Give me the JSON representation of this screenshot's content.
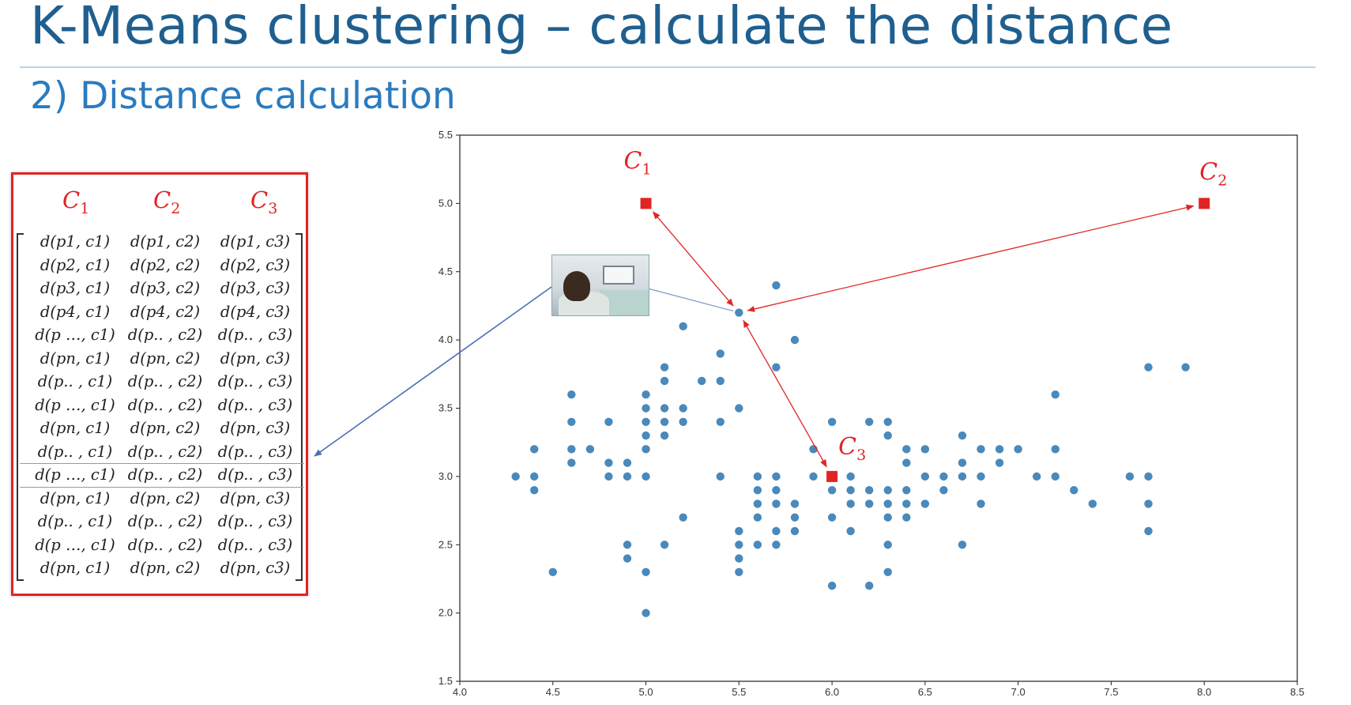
{
  "slide": {
    "title": "K-Means clustering – calculate the distance",
    "subtitle": "2) Distance calculation"
  },
  "matrix": {
    "headers": [
      {
        "letter": "C",
        "sub": "1"
      },
      {
        "letter": "C",
        "sub": "2"
      },
      {
        "letter": "C",
        "sub": "3"
      }
    ],
    "rows": [
      [
        "d(p1, c1)",
        "d(p1, c2)",
        "d(p1, c3)"
      ],
      [
        "d(p2, c1)",
        "d(p2, c2)",
        "d(p2, c3)"
      ],
      [
        "d(p3, c1)",
        "d(p3, c2)",
        "d(p3, c3)"
      ],
      [
        "d(p4, c1)",
        "d(p4, c2)",
        "d(p4, c3)"
      ],
      [
        "d(p …, c1)",
        "d(p.. , c2)",
        "d(p.. , c3)"
      ],
      [
        "d(pn, c1)",
        "d(pn, c2)",
        "d(pn, c3)"
      ],
      [
        "d(p.. , c1)",
        "d(p.. , c2)",
        "d(p.. , c3)"
      ],
      [
        "d(p …, c1)",
        "d(p.. , c2)",
        "d(p.. , c3)"
      ],
      [
        "d(pn, c1)",
        "d(pn, c2)",
        "d(pn, c3)"
      ],
      [
        "d(p.. , c1)",
        "d(p.. , c2)",
        "d(p.. , c3)"
      ],
      [
        "d(p …, c1)",
        "d(p.. , c2)",
        "d(p.. , c3)"
      ],
      [
        "d(pn, c1)",
        "d(pn, c2)",
        "d(pn, c3)"
      ],
      [
        "d(p.. , c1)",
        "d(p.. , c2)",
        "d(p.. , c3)"
      ],
      [
        "d(p …, c1)",
        "d(p.. , c2)",
        "d(p.. , c3)"
      ],
      [
        "d(pn, c1)",
        "d(pn, c2)",
        "d(pn, c3)"
      ]
    ],
    "highlighted_row": 10
  },
  "thumbnail": {
    "icon": "video-thumbnail-icon"
  },
  "chart_data": {
    "type": "scatter",
    "xlim": [
      4.0,
      8.5
    ],
    "ylim": [
      1.5,
      5.5
    ],
    "xticks": [
      "4.0",
      "4.5",
      "5.0",
      "5.5",
      "6.0",
      "6.5",
      "7.0",
      "7.5",
      "8.0",
      "8.5"
    ],
    "yticks": [
      "1.5",
      "2.0",
      "2.5",
      "3.0",
      "3.5",
      "4.0",
      "4.5",
      "5.0",
      "5.5"
    ],
    "grid": false,
    "point_color": "#3a7fb5",
    "centroid_color": "#e02424",
    "arrow_color": "#e02424",
    "points": [
      [
        4.3,
        3.0
      ],
      [
        4.4,
        3.2
      ],
      [
        4.4,
        3.0
      ],
      [
        4.4,
        2.9
      ],
      [
        4.5,
        2.3
      ],
      [
        4.6,
        3.6
      ],
      [
        4.6,
        3.4
      ],
      [
        4.6,
        3.2
      ],
      [
        4.6,
        3.1
      ],
      [
        4.7,
        3.2
      ],
      [
        4.8,
        3.4
      ],
      [
        4.8,
        3.1
      ],
      [
        4.8,
        3.0
      ],
      [
        4.9,
        3.1
      ],
      [
        4.9,
        3.0
      ],
      [
        4.9,
        2.5
      ],
      [
        4.9,
        2.4
      ],
      [
        5.0,
        3.6
      ],
      [
        5.0,
        3.5
      ],
      [
        5.0,
        3.4
      ],
      [
        5.0,
        3.3
      ],
      [
        5.0,
        3.2
      ],
      [
        5.0,
        3.0
      ],
      [
        5.0,
        2.3
      ],
      [
        5.0,
        2.0
      ],
      [
        5.1,
        3.8
      ],
      [
        5.1,
        3.7
      ],
      [
        5.1,
        3.5
      ],
      [
        5.1,
        3.4
      ],
      [
        5.1,
        3.3
      ],
      [
        5.1,
        2.5
      ],
      [
        5.2,
        4.1
      ],
      [
        5.2,
        3.5
      ],
      [
        5.2,
        3.4
      ],
      [
        5.2,
        2.7
      ],
      [
        5.3,
        3.7
      ],
      [
        5.4,
        3.9
      ],
      [
        5.4,
        3.7
      ],
      [
        5.4,
        3.4
      ],
      [
        5.4,
        3.0
      ],
      [
        5.5,
        4.2
      ],
      [
        5.5,
        3.5
      ],
      [
        5.5,
        2.6
      ],
      [
        5.5,
        2.5
      ],
      [
        5.5,
        2.4
      ],
      [
        5.5,
        2.3
      ],
      [
        5.6,
        3.0
      ],
      [
        5.6,
        2.9
      ],
      [
        5.6,
        2.8
      ],
      [
        5.6,
        2.7
      ],
      [
        5.6,
        2.5
      ],
      [
        5.7,
        4.4
      ],
      [
        5.7,
        3.8
      ],
      [
        5.7,
        3.0
      ],
      [
        5.7,
        2.9
      ],
      [
        5.7,
        2.8
      ],
      [
        5.7,
        2.6
      ],
      [
        5.7,
        2.5
      ],
      [
        5.8,
        4.0
      ],
      [
        5.8,
        2.8
      ],
      [
        5.8,
        2.7
      ],
      [
        5.8,
        2.6
      ],
      [
        5.9,
        3.2
      ],
      [
        5.9,
        3.0
      ],
      [
        6.0,
        3.4
      ],
      [
        6.0,
        2.9
      ],
      [
        6.0,
        2.7
      ],
      [
        6.0,
        2.2
      ],
      [
        6.1,
        3.0
      ],
      [
        6.1,
        2.9
      ],
      [
        6.1,
        2.8
      ],
      [
        6.1,
        2.6
      ],
      [
        6.2,
        3.4
      ],
      [
        6.2,
        2.9
      ],
      [
        6.2,
        2.8
      ],
      [
        6.2,
        2.2
      ],
      [
        6.3,
        3.4
      ],
      [
        6.3,
        3.3
      ],
      [
        6.3,
        2.9
      ],
      [
        6.3,
        2.8
      ],
      [
        6.3,
        2.7
      ],
      [
        6.3,
        2.5
      ],
      [
        6.3,
        2.3
      ],
      [
        6.4,
        3.2
      ],
      [
        6.4,
        3.1
      ],
      [
        6.4,
        2.9
      ],
      [
        6.4,
        2.8
      ],
      [
        6.4,
        2.7
      ],
      [
        6.5,
        3.2
      ],
      [
        6.5,
        3.0
      ],
      [
        6.5,
        2.8
      ],
      [
        6.6,
        3.0
      ],
      [
        6.6,
        2.9
      ],
      [
        6.7,
        3.3
      ],
      [
        6.7,
        3.1
      ],
      [
        6.7,
        3.0
      ],
      [
        6.7,
        2.5
      ],
      [
        6.8,
        3.2
      ],
      [
        6.8,
        3.0
      ],
      [
        6.8,
        2.8
      ],
      [
        6.9,
        3.2
      ],
      [
        6.9,
        3.1
      ],
      [
        7.0,
        3.2
      ],
      [
        7.1,
        3.0
      ],
      [
        7.2,
        3.6
      ],
      [
        7.2,
        3.2
      ],
      [
        7.2,
        3.0
      ],
      [
        7.3,
        2.9
      ],
      [
        7.4,
        2.8
      ],
      [
        7.6,
        3.0
      ],
      [
        7.7,
        3.8
      ],
      [
        7.7,
        3.0
      ],
      [
        7.7,
        2.8
      ],
      [
        7.7,
        2.6
      ],
      [
        7.9,
        3.8
      ]
    ],
    "centroids": [
      {
        "label": "C",
        "sub": "1",
        "x": 5.0,
        "y": 5.0
      },
      {
        "label": "C",
        "sub": "2",
        "x": 8.0,
        "y": 5.0
      },
      {
        "label": "C",
        "sub": "3",
        "x": 6.0,
        "y": 3.0
      }
    ],
    "focus_point": [
      5.5,
      4.2
    ]
  }
}
